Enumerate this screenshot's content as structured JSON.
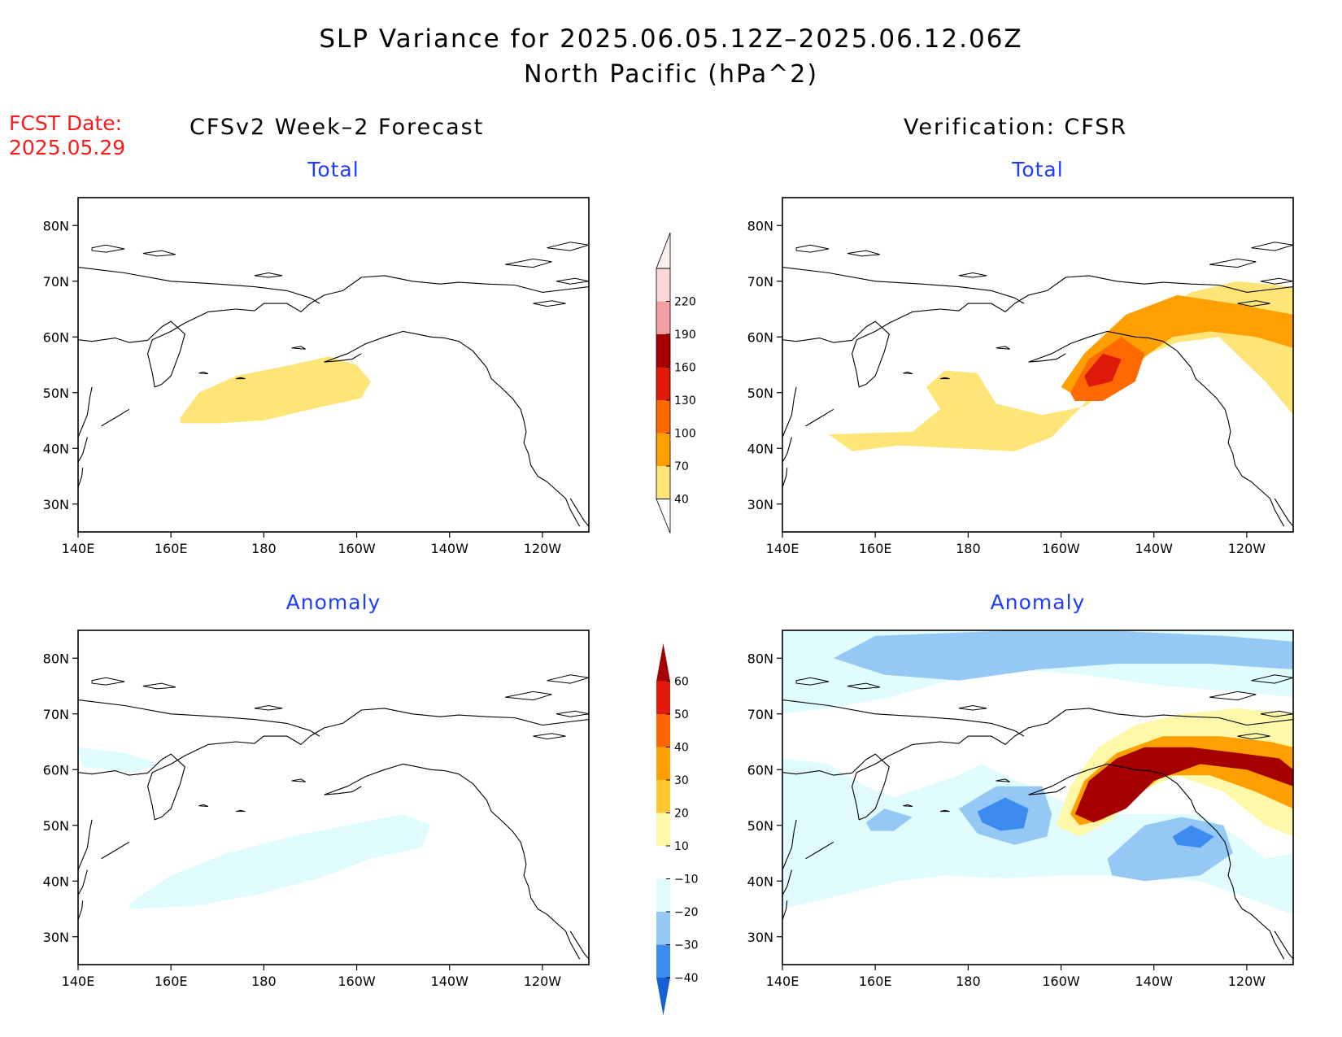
{
  "figure": {
    "title_line1": "SLP Variance for 2025.06.05.12Z–2025.06.12.06Z",
    "title_line2": "North Pacific (hPa^2)",
    "fcst_date_label": "FCST Date:",
    "fcst_date_value": "2025.05.29",
    "left_column_title": "CFSv2 Week–2 Forecast",
    "right_column_title": "Verification: CFSR",
    "panel_total_label": "Total",
    "panel_anomaly_label": "Anomaly"
  },
  "chart_data": [
    {
      "type": "heatmap",
      "panel": "CFSv2 Week–2 Forecast – Total",
      "x_tick_labels": [
        "140E",
        "160E",
        "180",
        "160W",
        "140W",
        "120W"
      ],
      "y_tick_labels": [
        "30N",
        "40N",
        "50N",
        "60N",
        "70N",
        "80N"
      ],
      "xlim": [
        140,
        250
      ],
      "ylim": [
        25,
        85
      ],
      "colorbar": "total",
      "regions": [
        {
          "level": 40,
          "polygon": [
            [
              162,
              45.5
            ],
            [
              166,
              50
            ],
            [
              174,
              53
            ],
            [
              186,
              55
            ],
            [
              194,
              56.5
            ],
            [
              200,
              55
            ],
            [
              203,
              52
            ],
            [
              201,
              49
            ],
            [
              190,
              47
            ],
            [
              180,
              45
            ],
            [
              170,
              44.5
            ],
            [
              162,
              44.5
            ]
          ]
        }
      ]
    },
    {
      "type": "heatmap",
      "panel": "Verification: CFSR – Total",
      "x_tick_labels": [
        "140E",
        "160E",
        "180",
        "160W",
        "140W",
        "120W"
      ],
      "y_tick_labels": [
        "30N",
        "40N",
        "50N",
        "60N",
        "70N",
        "80N"
      ],
      "xlim": [
        140,
        250
      ],
      "ylim": [
        25,
        85
      ],
      "colorbar": "total",
      "regions": [
        {
          "level": 40,
          "polygon": [
            [
              150,
              42.5
            ],
            [
              155,
              39.5
            ],
            [
              165,
              40.5
            ],
            [
              178,
              40
            ],
            [
              190,
              39.5
            ],
            [
              198,
              42
            ],
            [
              205,
              48
            ],
            [
              210,
              56
            ],
            [
              218,
              63
            ],
            [
              228,
              68
            ],
            [
              238,
              70
            ],
            [
              250,
              69
            ],
            [
              250,
              46
            ],
            [
              244,
              52
            ],
            [
              234,
              60
            ],
            [
              225,
              59
            ],
            [
              219,
              57
            ],
            [
              213,
              52
            ],
            [
              205,
              47.5
            ],
            [
              196,
              46
            ],
            [
              186,
              48
            ],
            [
              182,
              53.5
            ],
            [
              175,
              54
            ],
            [
              171,
              51
            ],
            [
              174,
              47
            ],
            [
              168,
              43
            ]
          ]
        },
        {
          "level": 70,
          "polygon": [
            [
              200,
              51
            ],
            [
              205,
              57
            ],
            [
              214,
              64
            ],
            [
              225,
              67.5
            ],
            [
              237,
              66
            ],
            [
              250,
              64
            ],
            [
              250,
              58
            ],
            [
              242,
              60
            ],
            [
              232,
              61
            ],
            [
              224,
              60
            ],
            [
              219,
              57
            ],
            [
              212,
              53
            ],
            [
              204,
              49
            ]
          ]
        },
        {
          "level": 100,
          "polygon": [
            [
              202,
              50
            ],
            [
              206,
              56
            ],
            [
              213,
              60
            ],
            [
              218,
              57
            ],
            [
              216,
              52
            ],
            [
              209,
              48.5
            ],
            [
              203,
              48.5
            ]
          ]
        },
        {
          "level": 130,
          "polygon": [
            [
              205,
              53
            ],
            [
              209,
              57
            ],
            [
              213,
              56
            ],
            [
              211,
              52
            ],
            [
              206,
              51
            ]
          ]
        }
      ]
    },
    {
      "type": "heatmap",
      "panel": "CFSv2 Week–2 Forecast – Anomaly",
      "x_tick_labels": [
        "140E",
        "160E",
        "180",
        "160W",
        "140W",
        "120W"
      ],
      "y_tick_labels": [
        "30N",
        "40N",
        "50N",
        "60N",
        "70N",
        "80N"
      ],
      "xlim": [
        140,
        250
      ],
      "ylim": [
        25,
        85
      ],
      "colorbar": "anomaly",
      "regions": [
        {
          "level": -10,
          "polygon": [
            [
              151,
              36
            ],
            [
              160,
              41
            ],
            [
              172,
              45
            ],
            [
              186,
              48
            ],
            [
              198,
              50
            ],
            [
              210,
              52
            ],
            [
              216,
              50
            ],
            [
              214,
              46
            ],
            [
              203,
              44
            ],
            [
              192,
              40.5
            ],
            [
              178,
              37.5
            ],
            [
              165,
              35.5
            ],
            [
              151,
              35
            ]
          ]
        },
        {
          "level": -10,
          "polygon": [
            [
              140,
              64
            ],
            [
              150,
              63
            ],
            [
              158,
              61
            ],
            [
              152,
              59.5
            ],
            [
              141,
              60.5
            ]
          ]
        }
      ]
    },
    {
      "type": "heatmap",
      "panel": "Verification: CFSR – Anomaly",
      "x_tick_labels": [
        "140E",
        "160E",
        "180",
        "160W",
        "140W",
        "120W"
      ],
      "y_tick_labels": [
        "30N",
        "40N",
        "50N",
        "60N",
        "70N",
        "80N"
      ],
      "xlim": [
        140,
        250
      ],
      "ylim": [
        25,
        85
      ],
      "colorbar": "anomaly",
      "regions": [
        {
          "level": -10,
          "polygon": [
            [
              140,
              85
            ],
            [
              250,
              85
            ],
            [
              250,
              73
            ],
            [
              238,
              74
            ],
            [
              222,
              75
            ],
            [
              205,
              77
            ],
            [
              190,
              78
            ],
            [
              176,
              76
            ],
            [
              163,
              73
            ],
            [
              150,
              71
            ],
            [
              140,
              70
            ]
          ]
        },
        {
          "level": -20,
          "polygon": [
            [
              151,
              80
            ],
            [
              160,
              84
            ],
            [
              190,
              85
            ],
            [
              210,
              85
            ],
            [
              235,
              84
            ],
            [
              250,
              83
            ],
            [
              250,
              78
            ],
            [
              232,
              79
            ],
            [
              212,
              79
            ],
            [
              195,
              78
            ],
            [
              178,
              76
            ],
            [
              162,
              77
            ]
          ]
        },
        {
          "level": -10,
          "polygon": [
            [
              140,
              62
            ],
            [
              150,
              61
            ],
            [
              158,
              57
            ],
            [
              164,
              55
            ],
            [
              171,
              57
            ],
            [
              178,
              59
            ],
            [
              183,
              61
            ],
            [
              188,
              59
            ],
            [
              196,
              56
            ],
            [
              206,
              52
            ],
            [
              218,
              52
            ],
            [
              230,
              52
            ],
            [
              238,
              48
            ],
            [
              244,
              44
            ],
            [
              250,
              45
            ],
            [
              250,
              34
            ],
            [
              240,
              37
            ],
            [
              230,
              40
            ],
            [
              220,
              40.5
            ],
            [
              212,
              41
            ],
            [
              200,
              41
            ],
            [
              188,
              40.5
            ],
            [
              175,
              41
            ],
            [
              165,
              40
            ],
            [
              155,
              38
            ],
            [
              145,
              36
            ],
            [
              140,
              35
            ],
            [
              140,
              46
            ]
          ]
        },
        {
          "level": -20,
          "polygon": [
            [
              158,
              50.5
            ],
            [
              162,
              53
            ],
            [
              168,
              51.5
            ],
            [
              164,
              49
            ],
            [
              159,
              49
            ]
          ]
        },
        {
          "level": -20,
          "polygon": [
            [
              178,
              53
            ],
            [
              186,
              57
            ],
            [
              196,
              57
            ],
            [
              198,
              52
            ],
            [
              197,
              48
            ],
            [
              190,
              46.5
            ],
            [
              182,
              48.5
            ]
          ]
        },
        {
          "level": -30,
          "polygon": [
            [
              182,
              52.5
            ],
            [
              188,
              55
            ],
            [
              193,
              53
            ],
            [
              192,
              49.5
            ],
            [
              187,
              49
            ],
            [
              183,
              50.5
            ]
          ]
        },
        {
          "level": -20,
          "polygon": [
            [
              210,
              44
            ],
            [
              218,
              50
            ],
            [
              226,
              51.5
            ],
            [
              235,
              50
            ],
            [
              237,
              45
            ],
            [
              230,
              41
            ],
            [
              218,
              40
            ],
            [
              211,
              41
            ]
          ]
        },
        {
          "level": -30,
          "polygon": [
            [
              224,
              48
            ],
            [
              228,
              50
            ],
            [
              233,
              48
            ],
            [
              230,
              46
            ],
            [
              225,
              46.5
            ]
          ]
        },
        {
          "level": 10,
          "polygon": [
            [
              199,
              50
            ],
            [
              202,
              57
            ],
            [
              208,
              64
            ],
            [
              216,
              68
            ],
            [
              226,
              70
            ],
            [
              238,
              71
            ],
            [
              250,
              70
            ],
            [
              250,
              48
            ],
            [
              244,
              50
            ],
            [
              235,
              56
            ],
            [
              225,
              59
            ],
            [
              217,
              56
            ],
            [
              211,
              51
            ],
            [
              204,
              48
            ]
          ]
        },
        {
          "level": 30,
          "polygon": [
            [
              202,
              52
            ],
            [
              205,
              58
            ],
            [
              212,
              63
            ],
            [
              222,
              66
            ],
            [
              234,
              66
            ],
            [
              245,
              65
            ],
            [
              250,
              64
            ],
            [
              250,
              53
            ],
            [
              242,
              56
            ],
            [
              232,
              59
            ],
            [
              222,
              59
            ],
            [
              216,
              55
            ],
            [
              209,
              51
            ],
            [
              204,
              50
            ]
          ]
        },
        {
          "level": 50,
          "polygon": [
            [
              203,
              52
            ],
            [
              206,
              58
            ],
            [
              212,
              62
            ],
            [
              218,
              64
            ],
            [
              228,
              64
            ],
            [
              238,
              63
            ],
            [
              247,
              62
            ],
            [
              250,
              60
            ],
            [
              250,
              57
            ],
            [
              240,
              60
            ],
            [
              230,
              61
            ],
            [
              220,
              58
            ],
            [
              214,
              53
            ],
            [
              207,
              50.5
            ]
          ]
        }
      ]
    }
  ],
  "colorbars": {
    "total": {
      "levels": [
        "40",
        "70",
        "100",
        "130",
        "160",
        "190",
        "220"
      ],
      "colors": [
        "#ffe478",
        "#ffa000",
        "#ff6a00",
        "#e01a0b",
        "#a50000",
        "#f0a0a0",
        "#fcd6d6"
      ],
      "over_color": "#fff0f0"
    },
    "anomaly": {
      "levels": [
        "−40",
        "−30",
        "−20",
        "−10",
        "10",
        "20",
        "30",
        "40",
        "50",
        "60"
      ],
      "colors": [
        "#1460d2",
        "#3c8cf0",
        "#96c8f5",
        "#e0fcfc",
        "#ffffff",
        "#fff8a8",
        "#ffc832",
        "#ffa000",
        "#ff6400",
        "#e11a0a",
        "#a50000"
      ]
    },
    "region_fill": {
      "40": "#ffe478",
      "70": "#ffa000",
      "100": "#ff6a00",
      "130": "#e01a0b",
      "-10": "#e0fcfc",
      "-20": "#96c8f5",
      "-30": "#3c8cf0",
      "10": "#fff8a8",
      "30": "#ffa000",
      "50": "#a50000"
    }
  }
}
